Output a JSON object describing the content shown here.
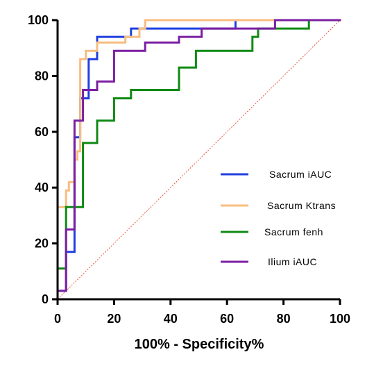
{
  "chart_data": {
    "type": "line",
    "title": "",
    "xlabel": "100% - Specificity%",
    "ylabel": "",
    "xlim": [
      0,
      100
    ],
    "ylim": [
      0,
      100
    ],
    "x_ticks": [
      0,
      20,
      40,
      60,
      80,
      100
    ],
    "y_ticks": [
      0,
      20,
      40,
      60,
      80,
      100
    ],
    "grid": false,
    "legend_position": "center-right",
    "reference_line": {
      "from": [
        0,
        0
      ],
      "to": [
        100,
        100
      ],
      "color": "#e8553a",
      "style": "dotted"
    },
    "series": [
      {
        "name": "Sacrum iAUC",
        "color": "#1f3fe0",
        "points": [
          [
            0,
            0
          ],
          [
            0,
            3
          ],
          [
            3,
            3
          ],
          [
            3,
            17
          ],
          [
            6,
            17
          ],
          [
            6,
            58
          ],
          [
            8,
            58
          ],
          [
            8,
            72
          ],
          [
            11,
            72
          ],
          [
            11,
            86
          ],
          [
            14,
            86
          ],
          [
            14,
            94
          ],
          [
            26,
            94
          ],
          [
            26,
            97
          ],
          [
            63,
            97
          ],
          [
            63,
            100
          ],
          [
            100,
            100
          ]
        ]
      },
      {
        "name": "Sacrum Ktrans",
        "color": "#f8bd80",
        "points": [
          [
            0,
            0
          ],
          [
            0,
            33
          ],
          [
            3,
            33
          ],
          [
            3,
            39
          ],
          [
            4,
            39
          ],
          [
            4,
            42
          ],
          [
            6,
            42
          ],
          [
            6,
            50
          ],
          [
            7,
            50
          ],
          [
            7,
            53
          ],
          [
            8,
            53
          ],
          [
            8,
            86
          ],
          [
            10,
            86
          ],
          [
            10,
            89
          ],
          [
            14,
            89
          ],
          [
            14,
            92
          ],
          [
            24,
            92
          ],
          [
            24,
            94
          ],
          [
            29,
            94
          ],
          [
            29,
            97
          ],
          [
            31,
            97
          ],
          [
            31,
            100
          ],
          [
            100,
            100
          ]
        ]
      },
      {
        "name": "Sacrum fenh",
        "color": "#0e8a13",
        "points": [
          [
            0,
            0
          ],
          [
            0,
            11
          ],
          [
            3,
            11
          ],
          [
            3,
            33
          ],
          [
            9,
            33
          ],
          [
            9,
            56
          ],
          [
            14,
            56
          ],
          [
            14,
            64
          ],
          [
            20,
            64
          ],
          [
            20,
            72
          ],
          [
            26,
            72
          ],
          [
            26,
            75
          ],
          [
            43,
            75
          ],
          [
            43,
            83
          ],
          [
            49,
            83
          ],
          [
            49,
            89
          ],
          [
            69,
            89
          ],
          [
            69,
            94
          ],
          [
            71,
            94
          ],
          [
            71,
            97
          ],
          [
            89,
            97
          ],
          [
            89,
            100
          ],
          [
            100,
            100
          ]
        ]
      },
      {
        "name": "Ilium iAUC",
        "color": "#7b1fa2",
        "points": [
          [
            0,
            0
          ],
          [
            0,
            3
          ],
          [
            3,
            3
          ],
          [
            3,
            25
          ],
          [
            6,
            25
          ],
          [
            6,
            64
          ],
          [
            9,
            64
          ],
          [
            9,
            75
          ],
          [
            14,
            75
          ],
          [
            14,
            78
          ],
          [
            20,
            78
          ],
          [
            20,
            89
          ],
          [
            31,
            89
          ],
          [
            31,
            92
          ],
          [
            43,
            92
          ],
          [
            43,
            94
          ],
          [
            51,
            94
          ],
          [
            51,
            97
          ],
          [
            77,
            97
          ],
          [
            77,
            100
          ],
          [
            100,
            100
          ]
        ]
      }
    ]
  }
}
